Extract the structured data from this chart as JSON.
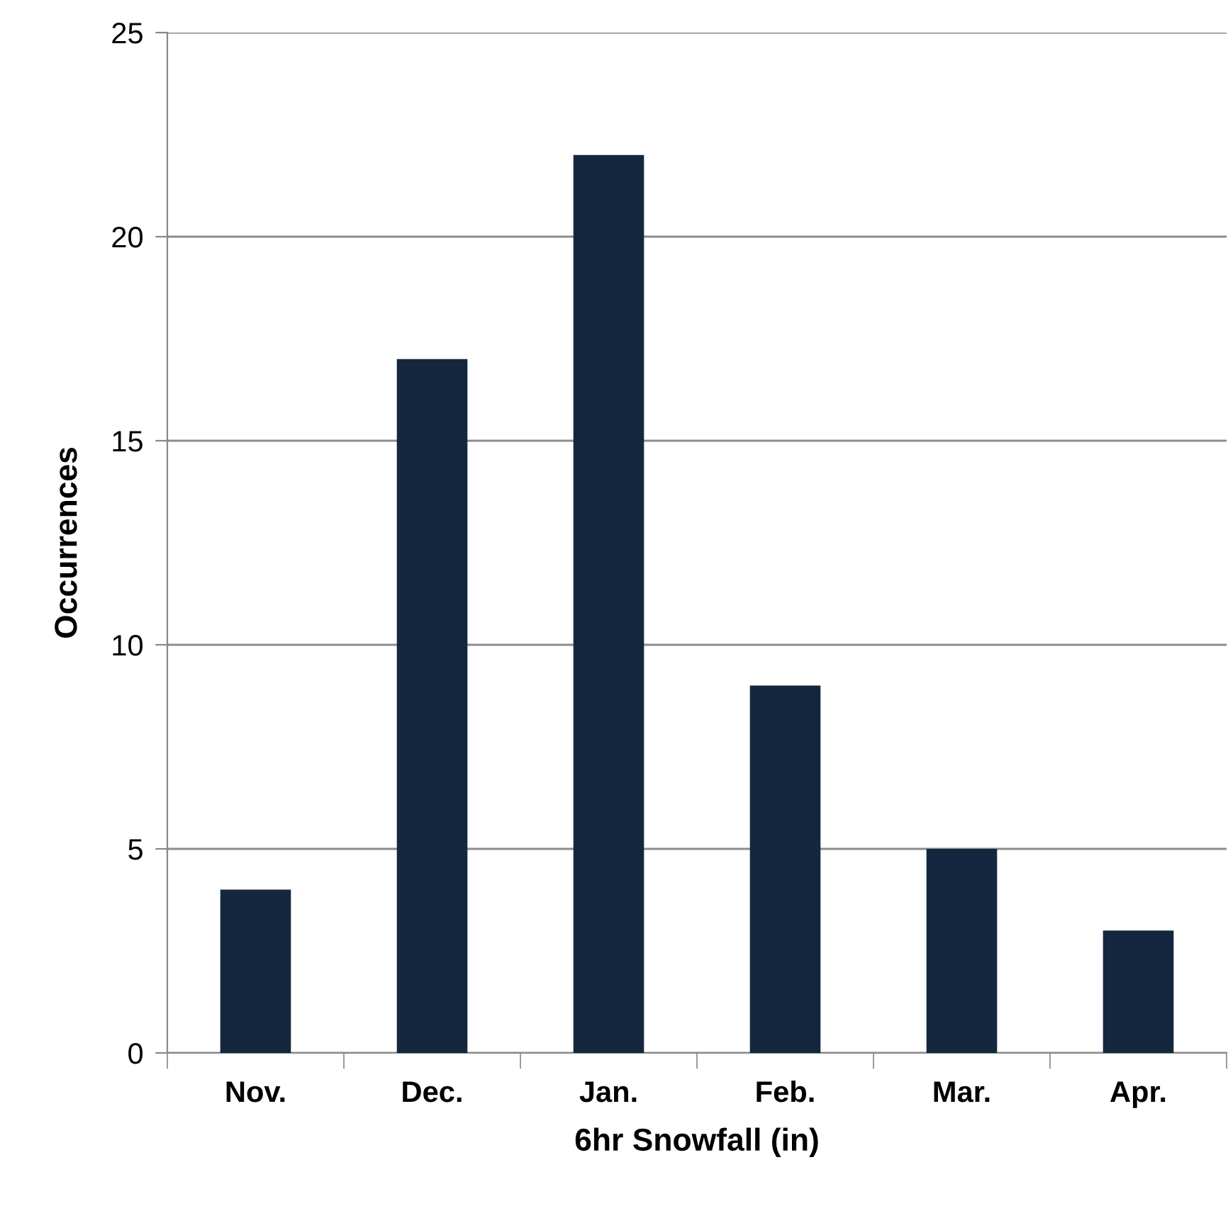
{
  "chart_data": {
    "type": "bar",
    "xlabel": "6hr Snowfall (in)",
    "ylabel": "Occurrences",
    "categories": [
      "Nov.",
      "Dec.",
      "Jan.",
      "Feb.",
      "Mar.",
      "Apr."
    ],
    "values": [
      4,
      17,
      22,
      9,
      5,
      3
    ],
    "color": "#14273f",
    "ylim": [
      0,
      25
    ],
    "yticks": [
      0,
      5,
      10,
      15,
      20,
      25
    ],
    "grid": "y",
    "legend": false
  }
}
